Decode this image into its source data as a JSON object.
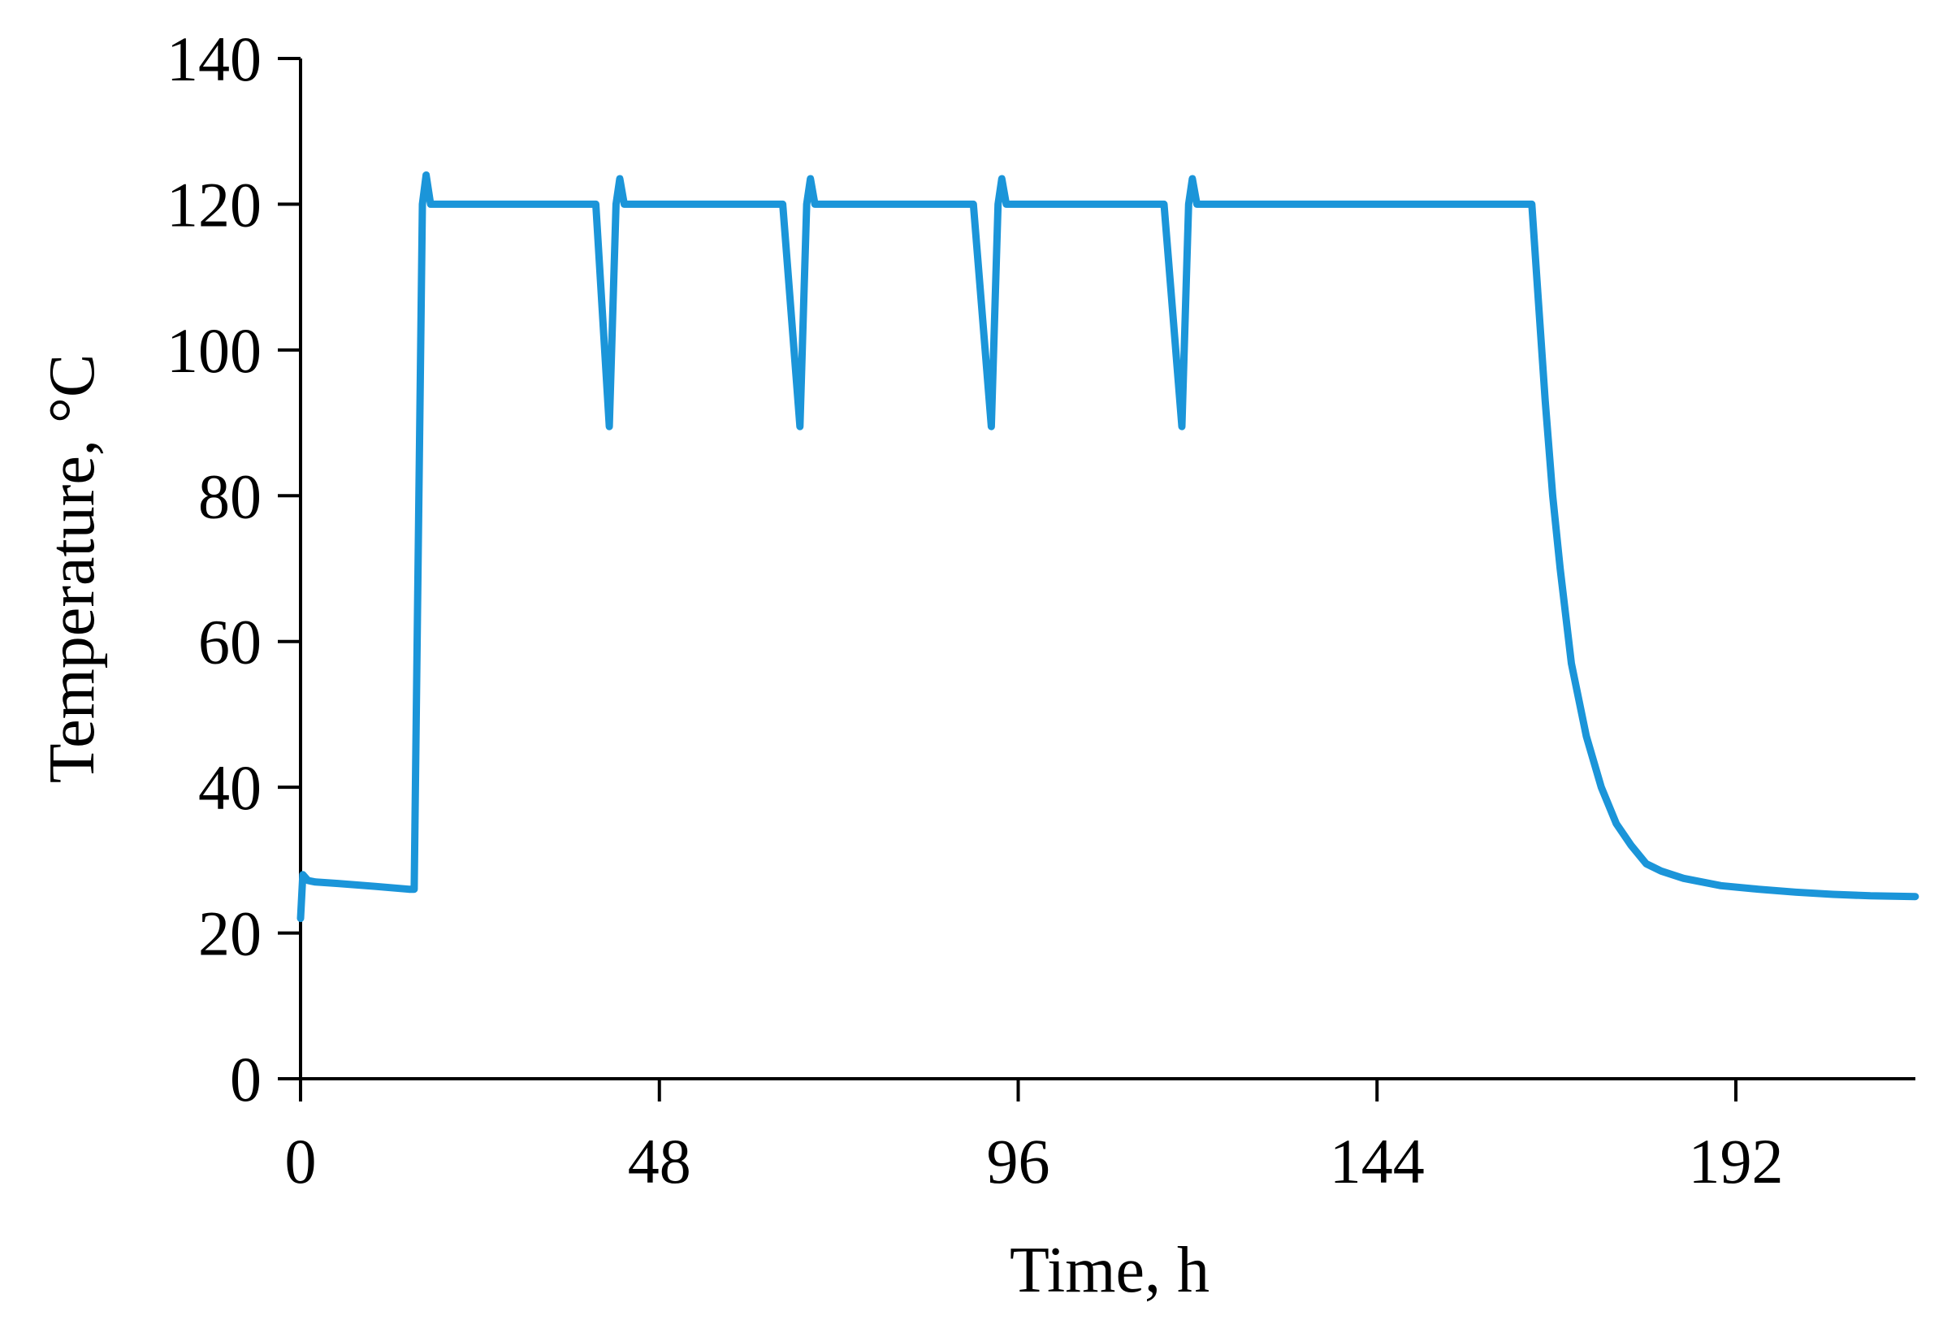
{
  "chart_data": {
    "type": "line",
    "title": "",
    "xlabel": "Time, h",
    "ylabel": "Temperature, °C",
    "xlim": [
      0,
      216
    ],
    "ylim": [
      0,
      140
    ],
    "x_ticks": [
      0,
      48,
      96,
      144,
      192
    ],
    "y_ticks": [
      0,
      20,
      40,
      60,
      80,
      100,
      120,
      140
    ],
    "grid": false,
    "legend": null,
    "series": [
      {
        "name": "Temperature",
        "color": "#1b95d9",
        "x": [
          0,
          0.3,
          1.0,
          2.0,
          5,
          10,
          14.5,
          15.2,
          16.3,
          16.8,
          17.4,
          18,
          25,
          35,
          39.5,
          41.3,
          42.2,
          42.7,
          43.3,
          44,
          55,
          64.5,
          66.8,
          67.7,
          68.2,
          68.8,
          69.5,
          80,
          90,
          92.4,
          93.3,
          93.8,
          94.4,
          95,
          105,
          115.5,
          117.9,
          118.8,
          119.3,
          119.9,
          120.5,
          140,
          160,
          164.7,
          165.5,
          166.5,
          167.5,
          168.5,
          170,
          172,
          174,
          176,
          178,
          180,
          182,
          185,
          190,
          195,
          200,
          205,
          210,
          216
        ],
        "y": [
          22,
          28,
          27.2,
          27,
          26.8,
          26.4,
          26,
          26,
          120,
          124,
          120,
          120,
          120,
          120,
          120,
          89.5,
          120,
          123.5,
          120,
          120,
          120,
          120,
          89.5,
          120,
          123.5,
          120,
          120,
          120,
          120,
          89.5,
          120,
          123.5,
          120,
          120,
          120,
          120,
          89.5,
          120,
          123.5,
          120,
          120,
          120,
          120,
          120,
          108,
          93,
          80,
          70,
          57,
          47,
          40,
          35,
          32,
          29.5,
          28.5,
          27.5,
          26.5,
          26,
          25.6,
          25.3,
          25.1,
          25
        ]
      }
    ]
  },
  "axes": {
    "x_title": "Time, h",
    "y_title": "Temperature, °C",
    "x_tick_labels": [
      "0",
      "48",
      "96",
      "144",
      "192"
    ],
    "y_tick_labels": [
      "0",
      "20",
      "40",
      "60",
      "80",
      "100",
      "120",
      "140"
    ]
  }
}
